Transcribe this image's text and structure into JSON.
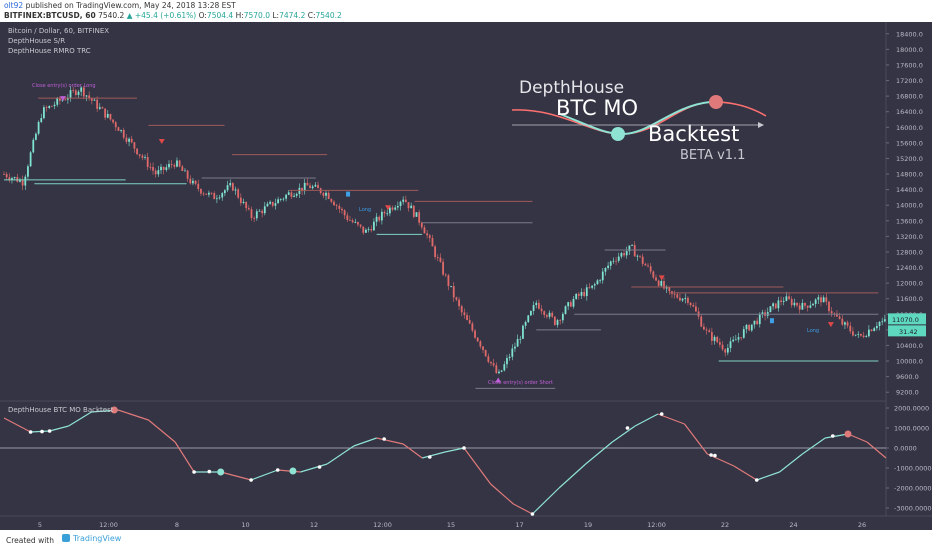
{
  "header": {
    "user": "olt92",
    "published": "published on TradingView.com, May 24, 2018 13:28 EST",
    "symbol": "BITFINEX:BTCUSD, 60",
    "price": "7540.2",
    "change": "+45.4 (+0.61%)",
    "open_label": "O:",
    "open": "7504.4",
    "high_label": "H:",
    "high": "7570.0",
    "low_label": "L:",
    "low": "7474.2",
    "close_label": "C:",
    "close": "7540.2"
  },
  "pane_titles": [
    "Bitcoin / Dollar, 60, BITFINEX",
    "DepthHouse S/R",
    "DepthHouse RMRO TRC"
  ],
  "logo": {
    "line1": "DepthHouse",
    "line2": "BTC MO",
    "line3": "Backtest",
    "line4": "BETA v1.1"
  },
  "annotations": {
    "close_entry_long": "Close entry(s) order Long",
    "close_entry_short": "Close entry(s) order Short",
    "long_label": "Long"
  },
  "oscillator_title": "DepthHouse BTC MO Backtest",
  "footer": {
    "created": "Created with",
    "brand": "TradingView"
  },
  "colors": {
    "background": "#343444",
    "bull": "#7fe3d0",
    "bear": "#e06a6a",
    "axis_text": "#b9b9c6",
    "signal_up": "#8fe3d3",
    "signal_down": "#e07a7a"
  },
  "chart_data": [
    {
      "type": "candlestick",
      "title": "Bitcoin / Dollar, 60, BITFINEX",
      "x_tick_labels": [
        "5",
        "12:00",
        "8",
        "10",
        "12",
        "12:00",
        "15",
        "17",
        "19",
        "12:00",
        "22",
        "24",
        "26"
      ],
      "y_tick_labels": [
        "18400.0",
        "18000.0",
        "17600.0",
        "17200.0",
        "16800.0",
        "16400.0",
        "16000.0",
        "15600.0",
        "15200.0",
        "14800.0",
        "14400.0",
        "14000.0",
        "13600.0",
        "13200.0",
        "12800.0",
        "12400.0",
        "12000.0",
        "11600.0",
        "11200.0",
        "10800.0",
        "10400.0",
        "10000.0",
        "9600.0",
        "9200.0"
      ],
      "ylim": [
        9000,
        18600
      ],
      "price_labels": {
        "last": "11070.0",
        "current": "31.42"
      },
      "close_path": [
        {
          "x": 0.0,
          "y": 14800
        },
        {
          "x": 0.5,
          "y": 14600
        },
        {
          "x": 1.0,
          "y": 16400
        },
        {
          "x": 1.5,
          "y": 16700
        },
        {
          "x": 2.0,
          "y": 17000
        },
        {
          "x": 2.5,
          "y": 16500
        },
        {
          "x": 3.0,
          "y": 16000
        },
        {
          "x": 3.5,
          "y": 15400
        },
        {
          "x": 4.0,
          "y": 14800
        },
        {
          "x": 4.5,
          "y": 15100
        },
        {
          "x": 5.0,
          "y": 14500
        },
        {
          "x": 5.5,
          "y": 14200
        },
        {
          "x": 6.0,
          "y": 14500
        },
        {
          "x": 6.5,
          "y": 13700
        },
        {
          "x": 7.0,
          "y": 14000
        },
        {
          "x": 7.5,
          "y": 14300
        },
        {
          "x": 8.0,
          "y": 14500
        },
        {
          "x": 8.5,
          "y": 14300
        },
        {
          "x": 9.0,
          "y": 13700
        },
        {
          "x": 9.5,
          "y": 13300
        },
        {
          "x": 10.0,
          "y": 13800
        },
        {
          "x": 10.5,
          "y": 14200
        },
        {
          "x": 11.0,
          "y": 13500
        },
        {
          "x": 11.5,
          "y": 12400
        },
        {
          "x": 12.0,
          "y": 11300
        },
        {
          "x": 12.5,
          "y": 10500
        },
        {
          "x": 13.0,
          "y": 9600
        },
        {
          "x": 13.5,
          "y": 10500
        },
        {
          "x": 14.0,
          "y": 11500
        },
        {
          "x": 14.5,
          "y": 11000
        },
        {
          "x": 15.0,
          "y": 11600
        },
        {
          "x": 15.5,
          "y": 11900
        },
        {
          "x": 16.0,
          "y": 12600
        },
        {
          "x": 16.5,
          "y": 12900
        },
        {
          "x": 17.0,
          "y": 12300
        },
        {
          "x": 17.5,
          "y": 11700
        },
        {
          "x": 18.0,
          "y": 11600
        },
        {
          "x": 18.5,
          "y": 10700
        },
        {
          "x": 19.0,
          "y": 10300
        },
        {
          "x": 19.5,
          "y": 10800
        },
        {
          "x": 20.0,
          "y": 11200
        },
        {
          "x": 20.5,
          "y": 11600
        },
        {
          "x": 21.0,
          "y": 11400
        },
        {
          "x": 21.5,
          "y": 11600
        },
        {
          "x": 22.0,
          "y": 11000
        },
        {
          "x": 22.5,
          "y": 10600
        },
        {
          "x": 23.0,
          "y": 11000
        }
      ]
    },
    {
      "type": "line",
      "title": "DepthHouse BTC MO Backtest",
      "y_tick_labels": [
        "2000.0000",
        "1000.0000",
        "0.0000",
        "-1000.0000",
        "-2000.0000",
        "-3000.0000"
      ],
      "ylim": [
        -3400,
        2200
      ],
      "values": [
        {
          "x": 0.0,
          "y": 1500
        },
        {
          "x": 0.7,
          "y": 800
        },
        {
          "x": 1.2,
          "y": 850
        },
        {
          "x": 1.7,
          "y": 1100
        },
        {
          "x": 2.3,
          "y": 1800
        },
        {
          "x": 3.0,
          "y": 1900
        },
        {
          "x": 3.8,
          "y": 1400
        },
        {
          "x": 4.5,
          "y": 300
        },
        {
          "x": 5.0,
          "y": -1200
        },
        {
          "x": 5.7,
          "y": -1200
        },
        {
          "x": 6.5,
          "y": -1600
        },
        {
          "x": 7.2,
          "y": -1100
        },
        {
          "x": 7.8,
          "y": -1200
        },
        {
          "x": 8.5,
          "y": -800
        },
        {
          "x": 9.2,
          "y": 100
        },
        {
          "x": 9.8,
          "y": 500
        },
        {
          "x": 10.5,
          "y": 200
        },
        {
          "x": 11.0,
          "y": -500
        },
        {
          "x": 11.6,
          "y": -200
        },
        {
          "x": 12.1,
          "y": 0
        },
        {
          "x": 12.8,
          "y": -1800
        },
        {
          "x": 13.4,
          "y": -2800
        },
        {
          "x": 13.9,
          "y": -3300
        },
        {
          "x": 14.6,
          "y": -2000
        },
        {
          "x": 15.3,
          "y": -800
        },
        {
          "x": 16.0,
          "y": 300
        },
        {
          "x": 16.6,
          "y": 1100
        },
        {
          "x": 17.2,
          "y": 1700
        },
        {
          "x": 17.9,
          "y": 1200
        },
        {
          "x": 18.5,
          "y": -300
        },
        {
          "x": 19.2,
          "y": -900
        },
        {
          "x": 19.8,
          "y": -1600
        },
        {
          "x": 20.4,
          "y": -1200
        },
        {
          "x": 21.0,
          "y": -300
        },
        {
          "x": 21.6,
          "y": 500
        },
        {
          "x": 22.2,
          "y": 700
        },
        {
          "x": 22.7,
          "y": 300
        },
        {
          "x": 23.2,
          "y": -500
        }
      ],
      "markers": [
        {
          "x": 0.7,
          "y": 800,
          "kind": "small"
        },
        {
          "x": 1.0,
          "y": 820,
          "kind": "small"
        },
        {
          "x": 1.2,
          "y": 850,
          "kind": "small"
        },
        {
          "x": 2.9,
          "y": 1900,
          "kind": "sell"
        },
        {
          "x": 5.0,
          "y": -1200,
          "kind": "small"
        },
        {
          "x": 5.4,
          "y": -1180,
          "kind": "small"
        },
        {
          "x": 5.7,
          "y": -1200,
          "kind": "buy"
        },
        {
          "x": 6.5,
          "y": -1600,
          "kind": "small"
        },
        {
          "x": 7.2,
          "y": -1100,
          "kind": "small"
        },
        {
          "x": 7.6,
          "y": -1150,
          "kind": "buy"
        },
        {
          "x": 8.3,
          "y": -950,
          "kind": "small"
        },
        {
          "x": 10.0,
          "y": 450,
          "kind": "small"
        },
        {
          "x": 11.2,
          "y": -450,
          "kind": "small"
        },
        {
          "x": 12.1,
          "y": 0,
          "kind": "small"
        },
        {
          "x": 13.9,
          "y": -3300,
          "kind": "small"
        },
        {
          "x": 16.4,
          "y": 1000,
          "kind": "small"
        },
        {
          "x": 17.3,
          "y": 1700,
          "kind": "small"
        },
        {
          "x": 18.6,
          "y": -350,
          "kind": "small"
        },
        {
          "x": 18.7,
          "y": -380,
          "kind": "small"
        },
        {
          "x": 19.8,
          "y": -1600,
          "kind": "small"
        },
        {
          "x": 21.8,
          "y": 600,
          "kind": "small"
        },
        {
          "x": 22.2,
          "y": 700,
          "kind": "sell"
        }
      ]
    }
  ]
}
